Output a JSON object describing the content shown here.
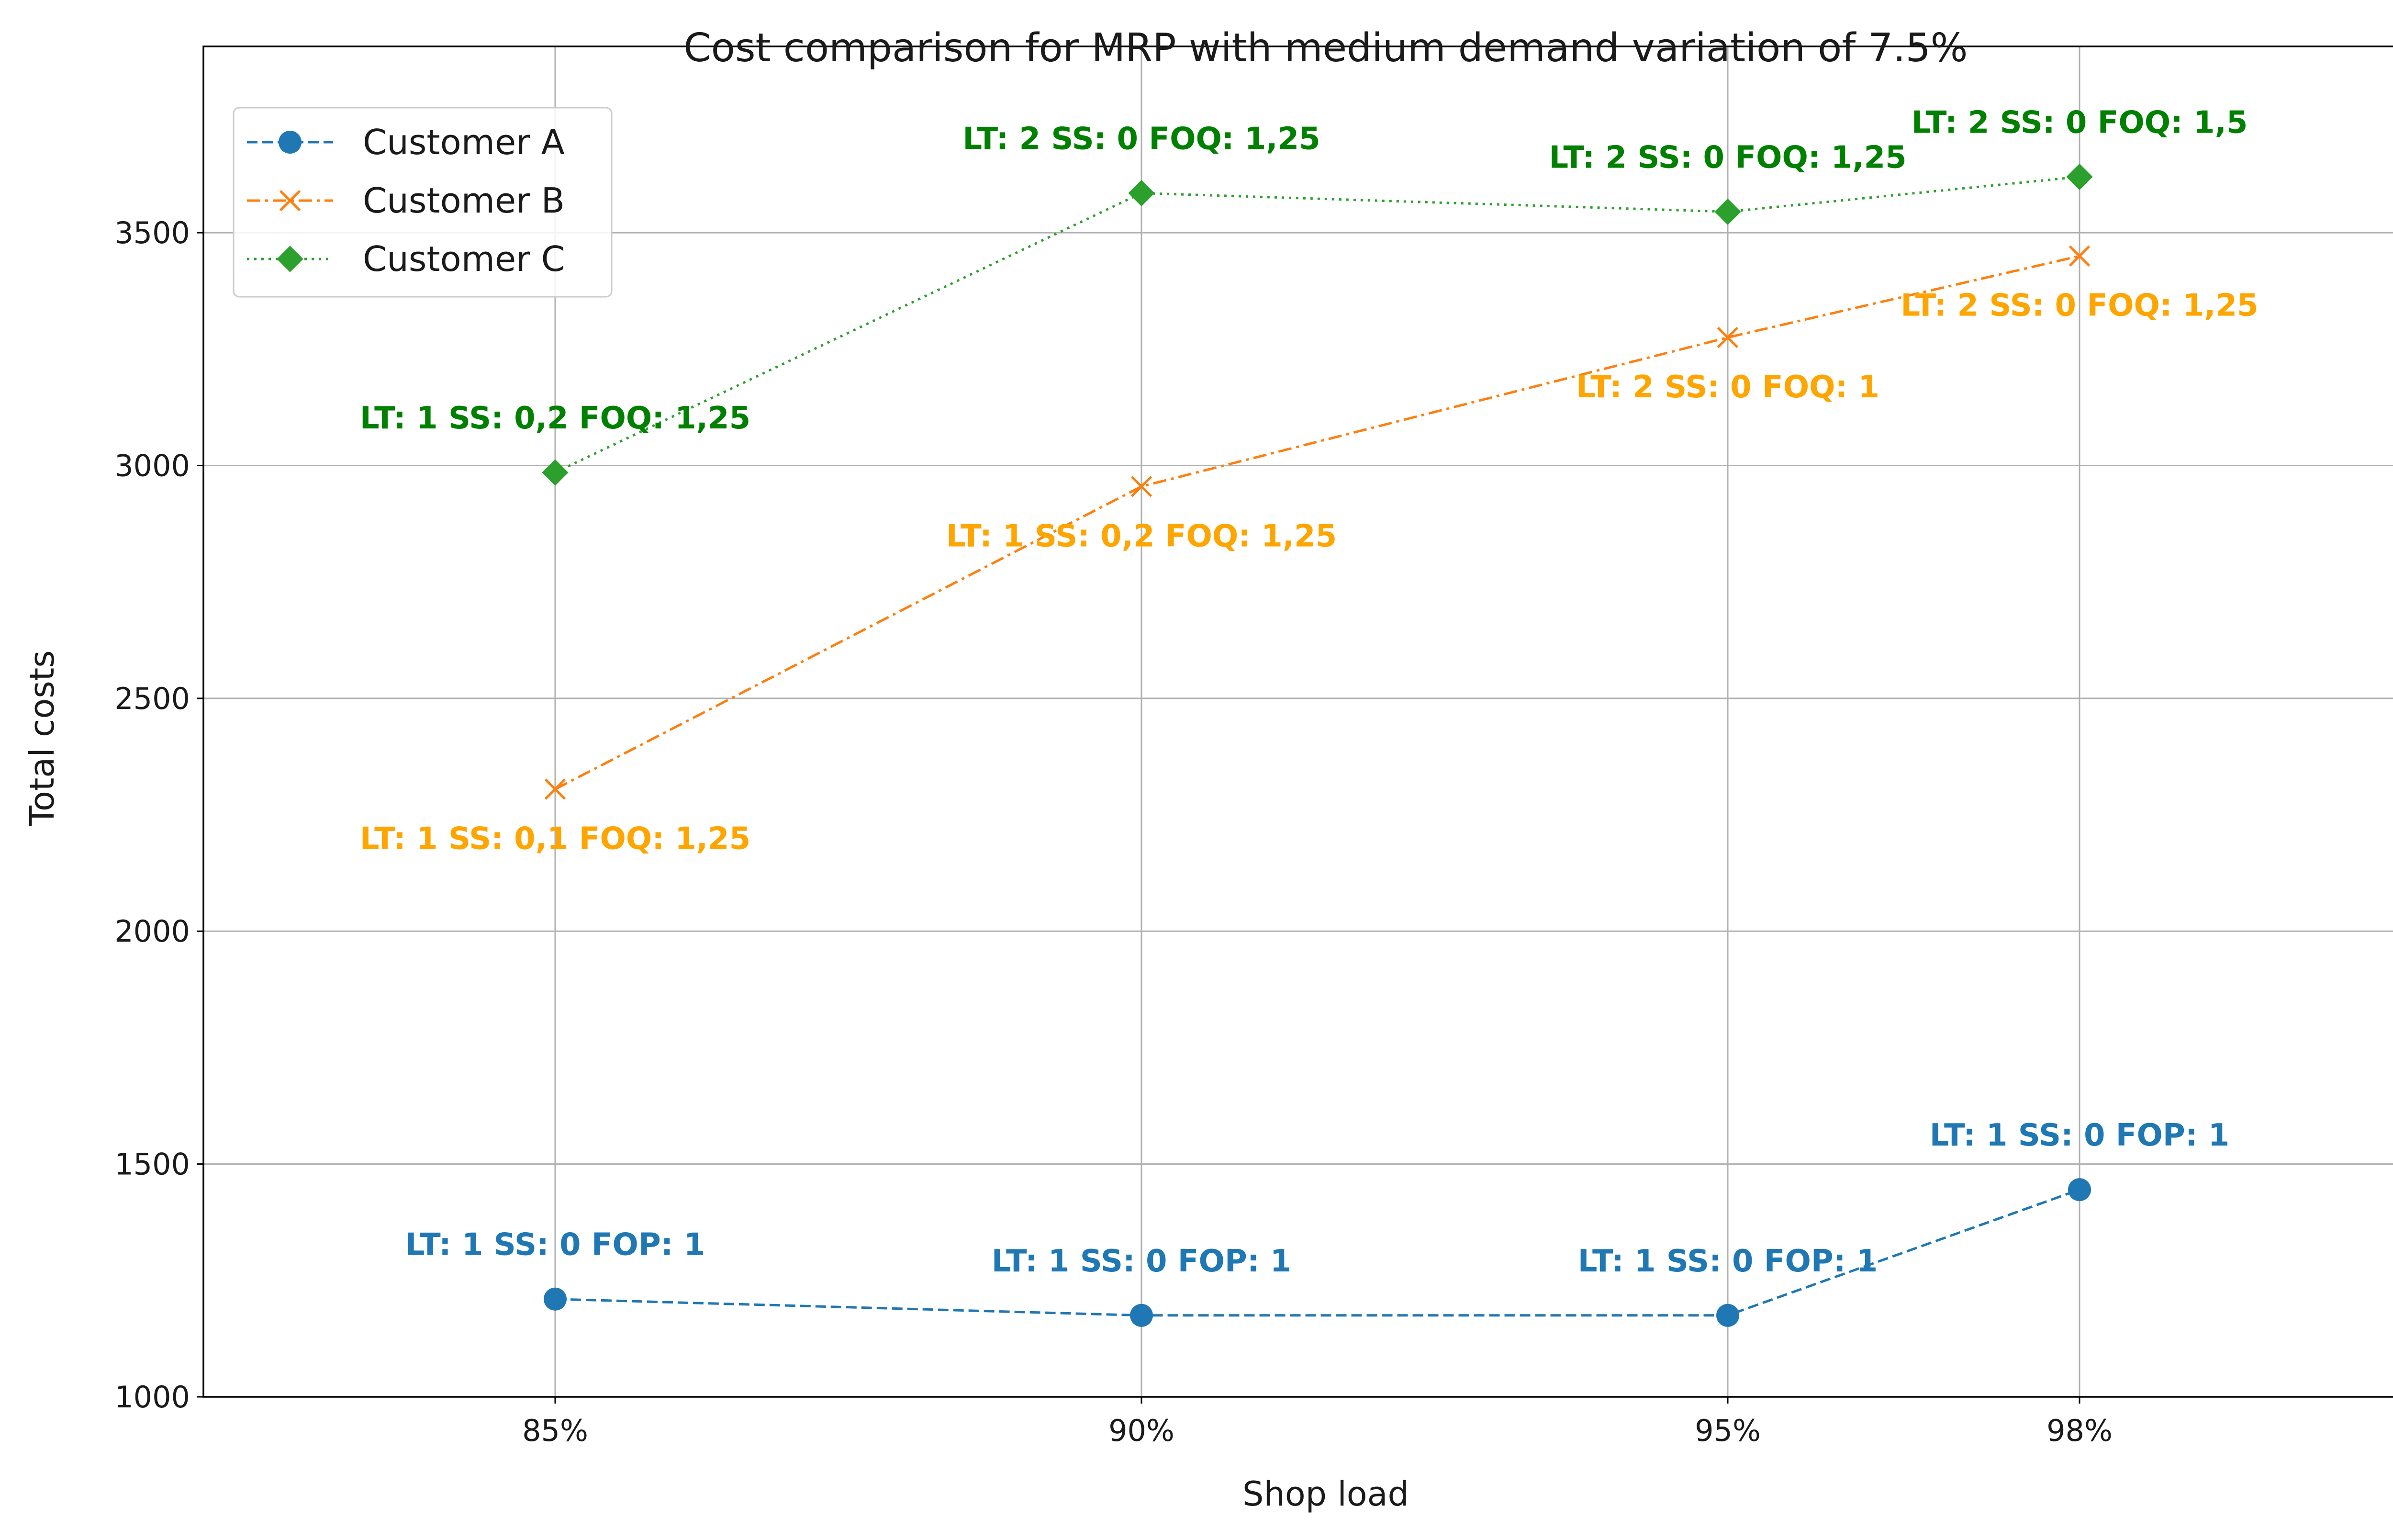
{
  "chart_data": {
    "type": "line",
    "title": "Cost comparison for MRP with medium demand variation of 7.5%",
    "xlabel": "Shop load",
    "ylabel": "Total costs",
    "categories": [
      "85%",
      "90%",
      "95%",
      "98%"
    ],
    "x": [
      85,
      90,
      95,
      98
    ],
    "ylim": [
      1000,
      3900
    ],
    "yticks": [
      1000,
      1500,
      2000,
      2500,
      3000,
      3500
    ],
    "grid": true,
    "legend_position": "top-left",
    "series": [
      {
        "name": "Customer A",
        "color": "#1f77b4",
        "annotation_color": "#1f77b4",
        "linestyle": "dashed",
        "marker": "circle",
        "values": [
          1210,
          1175,
          1175,
          1445
        ],
        "annotations": [
          "LT: 1 SS: 0 FOP: 1",
          "LT: 1 SS: 0 FOP: 1",
          "LT: 1 SS: 0 FOP: 1",
          "LT: 1 SS: 0 FOP: 1"
        ],
        "annotation_side": [
          "above",
          "above",
          "above",
          "above"
        ]
      },
      {
        "name": "Customer B",
        "color": "#ff7f0e",
        "annotation_color": "#ffa500",
        "linestyle": "dashdot",
        "marker": "x",
        "values": [
          2305,
          2955,
          3275,
          3450
        ],
        "annotations": [
          "LT: 1 SS: 0,1 FOQ: 1,25",
          "LT: 1 SS: 0,2 FOQ: 1,25",
          "LT: 2 SS: 0 FOQ: 1",
          "LT: 2 SS: 0 FOQ: 1,25"
        ],
        "annotation_side": [
          "below",
          "below",
          "below",
          "below"
        ]
      },
      {
        "name": "Customer C",
        "color": "#2ca02c",
        "annotation_color": "#008000",
        "linestyle": "dotted",
        "marker": "diamond",
        "values": [
          2985,
          3585,
          3545,
          3620
        ],
        "annotations": [
          "LT: 1 SS: 0,2 FOQ: 1,25",
          "LT: 2 SS: 0 FOQ: 1,25",
          "LT: 2 SS: 0 FOQ: 1,25",
          "LT: 2 SS: 0 FOQ: 1,5"
        ],
        "annotation_side": [
          "above",
          "above",
          "above",
          "above"
        ]
      }
    ]
  }
}
